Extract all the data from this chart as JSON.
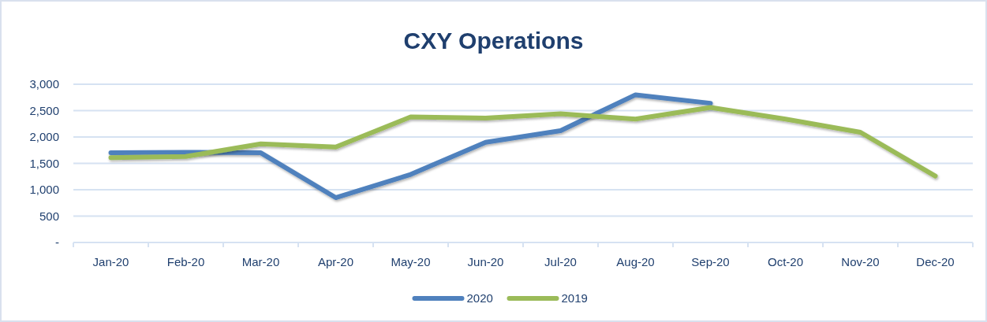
{
  "chart_data": {
    "type": "line",
    "title": "CXY Operations",
    "categories": [
      "Jan-20",
      "Feb-20",
      "Mar-20",
      "Apr-20",
      "May-20",
      "Jun-20",
      "Jul-20",
      "Aug-20",
      "Sep-20",
      "Oct-20",
      "Nov-20",
      "Dec-20"
    ],
    "series": [
      {
        "name": "2020",
        "color": "#4f81bd",
        "values": [
          1700,
          1710,
          1700,
          850,
          1290,
          1900,
          2120,
          2800,
          2640,
          null,
          null,
          null
        ]
      },
      {
        "name": "2019",
        "color": "#9bbb59",
        "values": [
          1610,
          1630,
          1870,
          1810,
          2380,
          2360,
          2440,
          2340,
          2560,
          2340,
          2090,
          1260
        ]
      }
    ],
    "ylim": [
      0,
      3000
    ],
    "yticks": [
      {
        "value": 0,
        "label": "-"
      },
      {
        "value": 500,
        "label": "500"
      },
      {
        "value": 1000,
        "label": "1,000"
      },
      {
        "value": 1500,
        "label": "1,500"
      },
      {
        "value": 2000,
        "label": "2,000"
      },
      {
        "value": 2500,
        "label": "2,500"
      },
      {
        "value": 3000,
        "label": "3,000"
      }
    ],
    "grid": "y",
    "legend": "bottom",
    "marker": "none",
    "line_style": "solid"
  }
}
